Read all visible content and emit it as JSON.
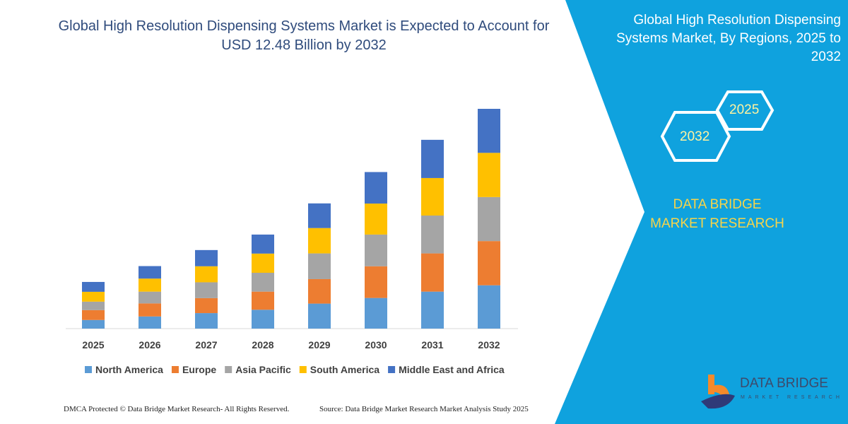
{
  "title": "Global High Resolution Dispensing Systems Market is Expected to Account for USD 12.48 Billion by 2032",
  "side_panel": {
    "title": "Global High Resolution Dispensing Systems Market, By Regions, 2025 to 2032",
    "hex_labels": [
      "2025",
      "2032"
    ],
    "brand": "DATA BRIDGE MARKET RESEARCH",
    "panel_color": "#0fa2de",
    "brand_color": "#f7d44a"
  },
  "logo": {
    "name": "DATA BRIDGE",
    "tagline": "MARKET RESEARCH"
  },
  "footer": {
    "left": "DMCA Protected © Data Bridge Market Research-  All Rights Reserved.",
    "right": "Source: Data Bridge Market Research  Market Analysis Study 2025"
  },
  "chart_data": {
    "type": "bar",
    "stacked": true,
    "title": "Global High Resolution Dispensing Systems Market is Expected to Account for USD 12.48 Billion by 2032",
    "xlabel": "",
    "ylabel": "",
    "ylim": [
      0,
      12.48
    ],
    "grid": false,
    "legend": "bottom",
    "categories": [
      "2025",
      "2026",
      "2027",
      "2028",
      "2029",
      "2030",
      "2031",
      "2032"
    ],
    "series": [
      {
        "name": "North America",
        "color": "#5b9bd5",
        "values": [
          0.49,
          0.69,
          0.88,
          1.07,
          1.42,
          1.74,
          2.1,
          2.46
        ]
      },
      {
        "name": "Europe",
        "color": "#ed7d31",
        "values": [
          0.56,
          0.74,
          0.85,
          1.03,
          1.39,
          1.8,
          2.17,
          2.51
        ]
      },
      {
        "name": "Asia Pacific",
        "color": "#a5a5a5",
        "values": [
          0.48,
          0.67,
          0.9,
          1.07,
          1.46,
          1.8,
          2.15,
          2.5
        ]
      },
      {
        "name": "South America",
        "color": "#ffc000",
        "values": [
          0.56,
          0.74,
          0.91,
          1.09,
          1.44,
          1.76,
          2.13,
          2.51
        ]
      },
      {
        "name": "Middle East and Africa",
        "color": "#4472c4",
        "values": [
          0.56,
          0.71,
          0.92,
          1.08,
          1.4,
          1.79,
          2.17,
          2.5
        ]
      }
    ]
  }
}
